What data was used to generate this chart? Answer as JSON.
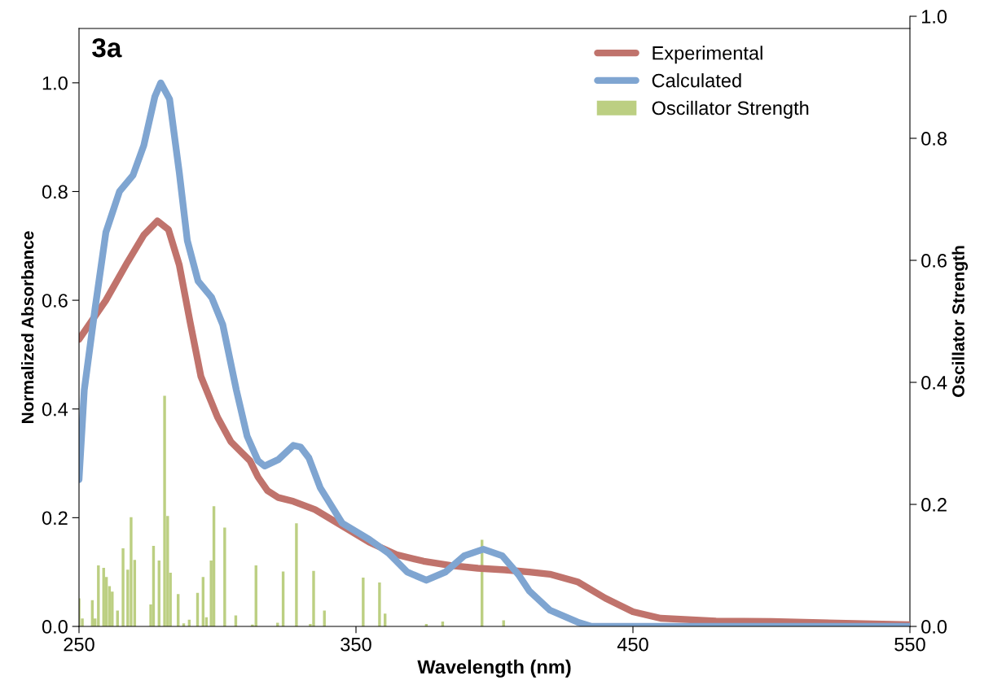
{
  "chart_data": {
    "type": "line",
    "xlabel": "Wavelength (nm)",
    "ylabel": "Normalized Absorbance",
    "y2label": "Oscillator Strength",
    "annotations": [
      "3a"
    ],
    "xlim": [
      250,
      550
    ],
    "xticks": [
      250,
      350,
      450,
      550
    ],
    "ylim": [
      0,
      1.1
    ],
    "yticks": [
      {
        "value": 0,
        "label": "0.0"
      },
      {
        "value": 0.2,
        "label": "0.2"
      },
      {
        "value": 0.4,
        "label": "0.4"
      },
      {
        "value": 0.6,
        "label": "0.6"
      },
      {
        "value": 0.8,
        "label": "0.8"
      },
      {
        "value": 1,
        "label": "1.0"
      }
    ],
    "y2lim": [
      0,
      1.0
    ],
    "y2ticks": [
      {
        "value": 0,
        "label": "0.0"
      },
      {
        "value": 0.2,
        "label": "0.2"
      },
      {
        "value": 0.4,
        "label": "0.4"
      },
      {
        "value": 0.6,
        "label": "0.6"
      },
      {
        "value": 0.8,
        "label": "0.8"
      },
      {
        "value": 1,
        "label": "1.0"
      }
    ],
    "legend": "top right",
    "grid": false,
    "marker": "none",
    "line_style": "solid",
    "series": [
      {
        "name": "Experimental",
        "color": "#c0736c",
        "x": [
          250,
          259.7,
          267.5,
          273.4,
          278.3,
          282.3,
          286.2,
          290.1,
          294,
          300,
          304.8,
          308.7,
          311.7,
          314.6,
          318,
          322,
          327.4,
          335.2,
          345,
          354.8,
          364.6,
          374.4,
          384.2,
          394,
          403.8,
          412.6,
          420,
          430,
          440,
          450,
          460,
          480,
          500,
          550
        ],
        "values": [
          0.528,
          0.6,
          0.67,
          0.72,
          0.746,
          0.73,
          0.665,
          0.56,
          0.46,
          0.385,
          0.34,
          0.32,
          0.305,
          0.275,
          0.25,
          0.237,
          0.23,
          0.215,
          0.185,
          0.155,
          0.132,
          0.12,
          0.112,
          0.107,
          0.104,
          0.1,
          0.096,
          0.082,
          0.052,
          0.027,
          0.015,
          0.01,
          0.009,
          0.003
        ]
      },
      {
        "name": "Calculated",
        "color": "#7fa5d1",
        "x": [
          250,
          251.9,
          255.8,
          259.7,
          264.6,
          269.5,
          273.4,
          277.4,
          279.5,
          282.7,
          286.2,
          289.1,
          293,
          297.9,
          301.9,
          306.8,
          310.7,
          314.6,
          317,
          322,
          327.4,
          330,
          333,
          337.1,
          345,
          354.8,
          361.7,
          368.5,
          375.4,
          382.3,
          389.1,
          396,
          402.8,
          408.7,
          412.6,
          420,
          430,
          435,
          550
        ],
        "values": [
          0.27,
          0.435,
          0.585,
          0.725,
          0.8,
          0.83,
          0.885,
          0.975,
          1.0,
          0.97,
          0.835,
          0.71,
          0.635,
          0.605,
          0.555,
          0.435,
          0.35,
          0.305,
          0.295,
          0.307,
          0.333,
          0.33,
          0.31,
          0.255,
          0.19,
          0.16,
          0.135,
          0.1,
          0.085,
          0.1,
          0.13,
          0.142,
          0.13,
          0.095,
          0.065,
          0.03,
          0.008,
          0,
          0
        ]
      },
      {
        "name": "Oscillator Strength",
        "type": "bar",
        "axis": "y2",
        "color": "#bccf82",
        "x": [
          250,
          251.2,
          254.8,
          255.8,
          257,
          258.9,
          259.9,
          261,
          262,
          263.9,
          265.9,
          267.6,
          268.8,
          270.1,
          275.9,
          276.9,
          278.9,
          280.9,
          282,
          283,
          285.8,
          287.8,
          289.8,
          292.8,
          294.8,
          296,
          297.7,
          298.7,
          302.6,
          306.6,
          312.6,
          313.9,
          321.7,
          323.7,
          328.5,
          333.5,
          334.7,
          338.6,
          352.6,
          358.5,
          360.5,
          375.4,
          381.3,
          395.5,
          403.3
        ],
        "values": [
          0.046,
          0.013,
          0.043,
          0.013,
          0.1,
          0.096,
          0.081,
          0.066,
          0.057,
          0.026,
          0.128,
          0.093,
          0.179,
          0.109,
          0.036,
          0.132,
          0.108,
          0.378,
          0.181,
          0.088,
          0.053,
          0.005,
          0.011,
          0.055,
          0.081,
          0.015,
          0.108,
          0.197,
          0.162,
          0.018,
          0.003,
          0.1,
          0.006,
          0.09,
          0.169,
          0.004,
          0.091,
          0.026,
          0.08,
          0.072,
          0.021,
          0.004,
          0.008,
          0.142,
          0.01
        ]
      }
    ]
  }
}
